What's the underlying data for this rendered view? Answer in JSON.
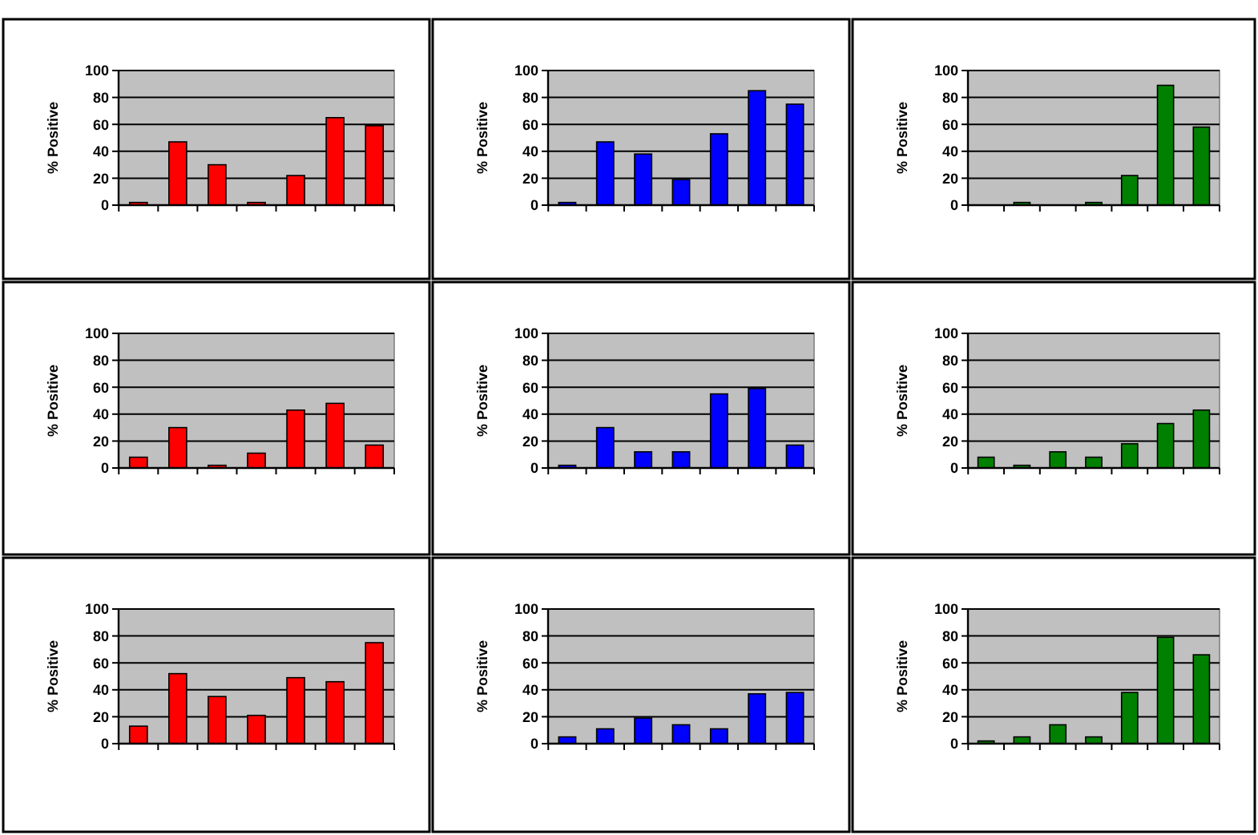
{
  "chart_data": [
    {
      "type": "bar",
      "ylabel": "% Positive",
      "categories": [
        null,
        null,
        null,
        null,
        null,
        null,
        null
      ],
      "values": [
        2,
        47,
        30,
        2,
        22,
        65,
        59
      ],
      "color": "#ff0000",
      "ylim": [
        0,
        100
      ],
      "yticks": [
        0,
        20,
        40,
        60,
        80,
        100
      ],
      "grid": "y",
      "tick_labels": "y"
    },
    {
      "type": "bar",
      "ylabel": "% Positive",
      "categories": [
        null,
        null,
        null,
        null,
        null,
        null,
        null
      ],
      "values": [
        2,
        47,
        38,
        19,
        53,
        85,
        75
      ],
      "color": "#0000ff",
      "ylim": [
        0,
        100
      ],
      "yticks": [
        0,
        20,
        40,
        60,
        80,
        100
      ],
      "grid": "y",
      "tick_labels": "y"
    },
    {
      "type": "bar",
      "ylabel": "% Positive",
      "categories": [
        null,
        null,
        null,
        null,
        null,
        null,
        null
      ],
      "values": [
        0,
        2,
        0,
        2,
        22,
        89,
        58
      ],
      "color": "#008000",
      "ylim": [
        0,
        100
      ],
      "yticks": [
        0,
        20,
        40,
        60,
        80,
        100
      ],
      "grid": "y",
      "tick_labels": "y"
    },
    {
      "type": "bar",
      "ylabel": "% Positive",
      "categories": [
        null,
        null,
        null,
        null,
        null,
        null,
        null
      ],
      "values": [
        8,
        30,
        2,
        11,
        43,
        48,
        17
      ],
      "color": "#ff0000",
      "ylim": [
        0,
        100
      ],
      "yticks": [
        0,
        20,
        40,
        60,
        80,
        100
      ],
      "grid": "y",
      "tick_labels": "y"
    },
    {
      "type": "bar",
      "ylabel": "% Positive",
      "categories": [
        null,
        null,
        null,
        null,
        null,
        null,
        null
      ],
      "values": [
        2,
        30,
        12,
        12,
        55,
        59,
        17
      ],
      "color": "#0000ff",
      "ylim": [
        0,
        100
      ],
      "yticks": [
        0,
        20,
        40,
        60,
        80,
        100
      ],
      "grid": "y",
      "tick_labels": "y"
    },
    {
      "type": "bar",
      "ylabel": "% Positive",
      "categories": [
        null,
        null,
        null,
        null,
        null,
        null,
        null
      ],
      "values": [
        8,
        2,
        12,
        8,
        18,
        33,
        43
      ],
      "color": "#008000",
      "ylim": [
        0,
        100
      ],
      "yticks": [
        0,
        20,
        40,
        60,
        80,
        100
      ],
      "grid": "y",
      "tick_labels": "y"
    },
    {
      "type": "bar",
      "ylabel": "% Positive",
      "categories": [
        null,
        null,
        null,
        null,
        null,
        null,
        null
      ],
      "values": [
        13,
        52,
        35,
        21,
        49,
        46,
        75
      ],
      "color": "#ff0000",
      "ylim": [
        0,
        100
      ],
      "yticks": [
        0,
        20,
        40,
        60,
        80,
        100
      ],
      "grid": "y",
      "tick_labels": "y"
    },
    {
      "type": "bar",
      "ylabel": "% Positive",
      "categories": [
        null,
        null,
        null,
        null,
        null,
        null,
        null
      ],
      "values": [
        5,
        11,
        19,
        14,
        11,
        37,
        38
      ],
      "color": "#0000ff",
      "ylim": [
        0,
        100
      ],
      "yticks": [
        0,
        20,
        40,
        60,
        80,
        100
      ],
      "grid": "y",
      "tick_labels": "y"
    },
    {
      "type": "bar",
      "ylabel": "% Positive",
      "categories": [
        null,
        null,
        null,
        null,
        null,
        null,
        null
      ],
      "values": [
        2,
        5,
        14,
        5,
        38,
        79,
        66
      ],
      "color": "#008000",
      "ylim": [
        0,
        100
      ],
      "yticks": [
        0,
        20,
        40,
        60,
        80,
        100
      ],
      "grid": "y",
      "tick_labels": "y"
    }
  ]
}
